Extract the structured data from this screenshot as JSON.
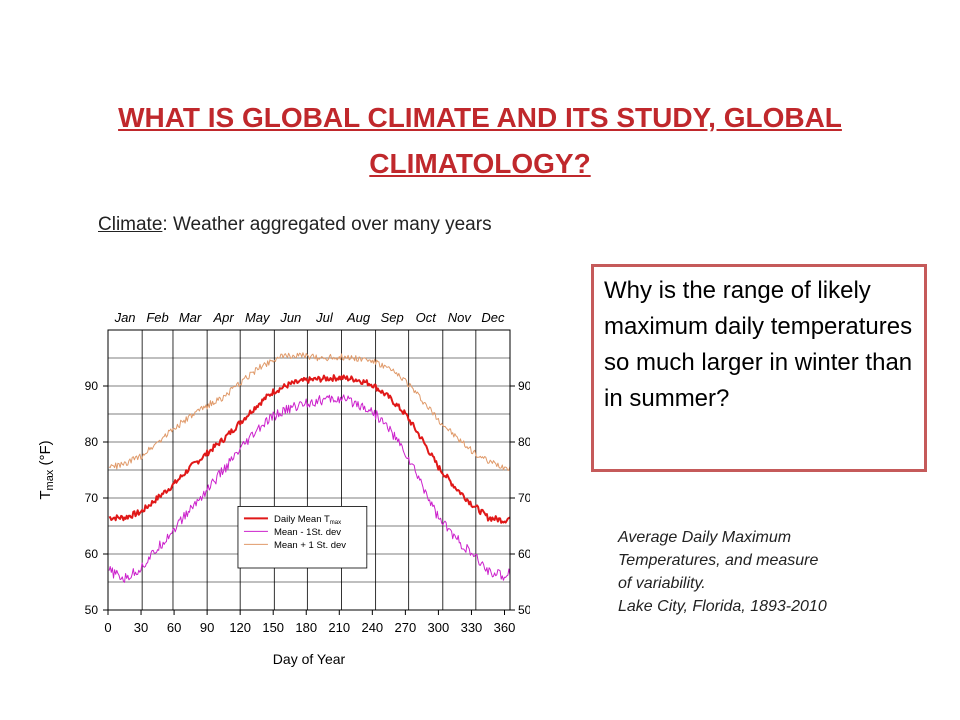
{
  "slide": {
    "title": "WHAT IS GLOBAL CLIMATE AND ITS STUDY, GLOBAL CLIMATOLOGY?",
    "subtitle_term": "Climate",
    "subtitle_rest": ": Weather aggregated over many years",
    "question": "Why is the range of likely maximum daily temperatures so much larger in winter than in summer?",
    "caption_lines": [
      "Average Daily Maximum",
      "Temperatures, and measure",
      "of variability.",
      "Lake City, Florida, 1893-2010"
    ]
  },
  "chart_data": {
    "type": "line",
    "xlabel": "Day of Year",
    "ylabel_main": "T",
    "ylabel_sub": "max",
    "ylabel_unit": " (°F)",
    "xlim": [
      0,
      365
    ],
    "ylim": [
      50,
      100
    ],
    "xticks": [
      0,
      30,
      60,
      90,
      120,
      150,
      180,
      210,
      240,
      270,
      300,
      330,
      360
    ],
    "yticks": [
      50,
      60,
      70,
      80,
      90
    ],
    "months": [
      "Jan",
      "Feb",
      "Mar",
      "Apr",
      "May",
      "Jun",
      "Jul",
      "Aug",
      "Sep",
      "Oct",
      "Nov",
      "Dec"
    ],
    "legend_position": "lower-center",
    "legend_labels": [
      "Daily Mean T",
      "Mean - 1St. dev",
      "Mean + 1 St. dev"
    ],
    "legend_sub": "max",
    "x": [
      1,
      15,
      30,
      45,
      60,
      75,
      90,
      105,
      120,
      135,
      150,
      165,
      180,
      195,
      210,
      225,
      240,
      255,
      270,
      285,
      300,
      315,
      330,
      345,
      360,
      365
    ],
    "series": [
      {
        "color": "#e01818",
        "values": [
          66.5,
          66.5,
          67.5,
          70.0,
          72.5,
          75.5,
          78.0,
          80.5,
          83.5,
          86.5,
          89.0,
          90.3,
          91.0,
          91.3,
          91.5,
          91.2,
          90.3,
          88.0,
          85.0,
          80.5,
          75.5,
          72.0,
          69.0,
          66.5,
          66.0,
          66.5
        ]
      },
      {
        "color": "#cc22cc",
        "values": [
          57.0,
          55.5,
          57.5,
          61.0,
          64.5,
          68.0,
          71.5,
          75.0,
          78.5,
          82.0,
          84.5,
          86.0,
          87.0,
          87.5,
          87.7,
          87.0,
          85.5,
          82.5,
          78.0,
          72.5,
          66.5,
          63.0,
          60.0,
          57.0,
          56.0,
          57.0
        ]
      },
      {
        "color": "#e09a6a",
        "values": [
          75.5,
          76.0,
          77.5,
          80.0,
          82.5,
          84.5,
          86.5,
          88.0,
          90.5,
          93.0,
          94.8,
          95.5,
          95.3,
          95.0,
          95.2,
          95.0,
          94.5,
          93.0,
          91.0,
          87.5,
          84.0,
          81.0,
          78.5,
          76.5,
          75.5,
          75.5
        ]
      }
    ]
  }
}
